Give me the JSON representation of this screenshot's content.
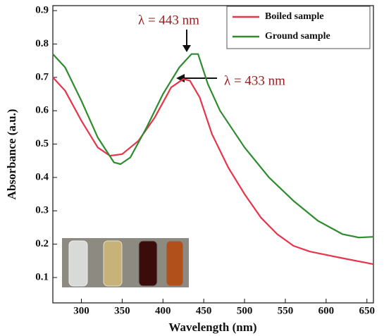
{
  "chart_data": {
    "type": "line",
    "x_label": "Wavelength (nm)",
    "y_label": "Absorbance (a.u.)",
    "xlim": [
      265,
      658
    ],
    "ylim": [
      0.024,
      0.915
    ],
    "xticks": [
      300,
      350,
      400,
      450,
      500,
      550,
      600,
      650
    ],
    "yticks": [
      0.1,
      0.2,
      0.3,
      0.4,
      0.5,
      0.6,
      0.7,
      0.8,
      0.9
    ],
    "legend": "upper right",
    "annotations": [
      "λ = 443 nm",
      "λ = 433 nm"
    ],
    "series": [
      {
        "name": "Boiled sample",
        "color": "#e8344a",
        "x": [
          265,
          280,
          300,
          320,
          335,
          350,
          370,
          390,
          410,
          425,
          433,
          445,
          460,
          480,
          500,
          520,
          540,
          560,
          580,
          600,
          620,
          658
        ],
        "values": [
          0.7,
          0.66,
          0.57,
          0.49,
          0.465,
          0.47,
          0.51,
          0.58,
          0.67,
          0.695,
          0.69,
          0.64,
          0.53,
          0.43,
          0.35,
          0.28,
          0.23,
          0.195,
          0.178,
          0.168,
          0.158,
          0.14
        ]
      },
      {
        "name": "Ground sample",
        "color": "#2e8b2e",
        "x": [
          265,
          280,
          300,
          320,
          340,
          348,
          360,
          380,
          400,
          420,
          435,
          443,
          455,
          470,
          500,
          530,
          560,
          590,
          620,
          640,
          658
        ],
        "values": [
          0.77,
          0.73,
          0.63,
          0.52,
          0.445,
          0.44,
          0.46,
          0.55,
          0.65,
          0.73,
          0.77,
          0.77,
          0.68,
          0.6,
          0.49,
          0.4,
          0.33,
          0.27,
          0.23,
          0.22,
          0.222
        ]
      }
    ]
  }
}
